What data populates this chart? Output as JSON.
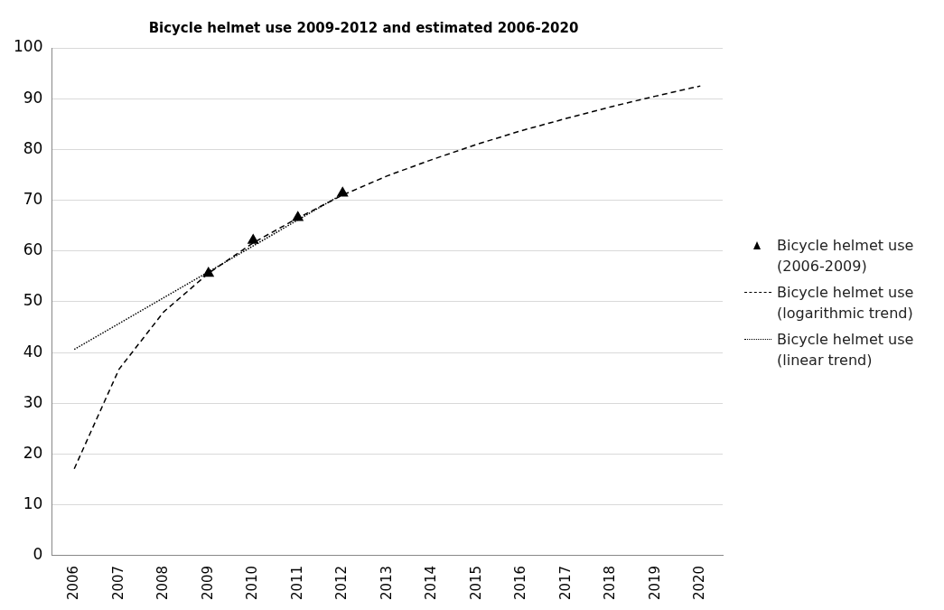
{
  "chart_data": {
    "type": "line",
    "title": "Bicycle helmet use 2009-2012 and estimated 2006-2020",
    "categories": [
      "2006",
      "2007",
      "2008",
      "2009",
      "2010",
      "2011",
      "2012",
      "2013",
      "2014",
      "2015",
      "2016",
      "2017",
      "2018",
      "2019",
      "2020"
    ],
    "series": [
      {
        "name": "Bicycle helmet use (2006-2009)",
        "type": "scatter",
        "marker": "triangle",
        "color": "#000000",
        "values": [
          null,
          null,
          null,
          55.6,
          62.1,
          66.6,
          71.4,
          null,
          null,
          null,
          null,
          null,
          null,
          null,
          null
        ]
      },
      {
        "name": "Bicycle helmet use (logarithmic trend)",
        "type": "line",
        "line_style": "dashed",
        "marker": "none",
        "color": "#000000",
        "values": [
          17.1,
          36.7,
          48,
          55.6,
          61.6,
          66.5,
          71,
          74.8,
          78,
          81,
          83.7,
          86.1,
          88.4,
          90.5,
          92.5
        ]
      },
      {
        "name": "Bicycle helmet use (linear trend)",
        "type": "line",
        "line_style": "dotted",
        "marker": "none",
        "color": "#000000",
        "values": [
          40.6,
          45.7,
          50.8,
          55.9,
          61,
          66.1,
          71.2,
          null,
          null,
          null,
          null,
          null,
          null,
          null,
          null
        ]
      }
    ],
    "ylim": [
      0,
      100
    ],
    "yticks": [
      0,
      10,
      20,
      30,
      40,
      50,
      60,
      70,
      80,
      90,
      100
    ],
    "grid": "y",
    "legend": "right"
  }
}
